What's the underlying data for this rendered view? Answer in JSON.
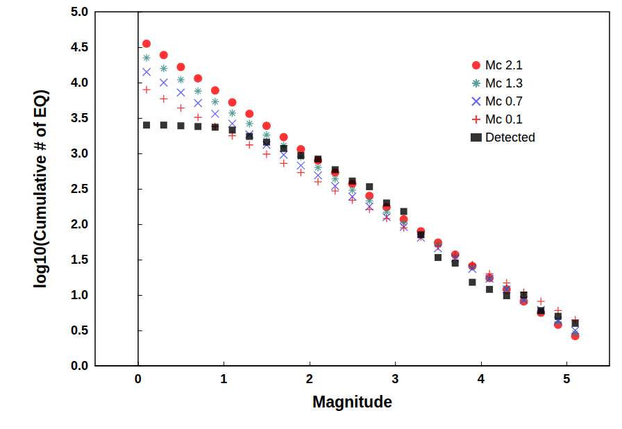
{
  "chart_data": {
    "type": "scatter",
    "x_label": "Magnitude",
    "y_label": "log10(Cumulative # of EQ)",
    "xlim": [
      -0.5,
      5.5
    ],
    "xticks": [
      0,
      1,
      2,
      3,
      4,
      5
    ],
    "ylim": [
      0,
      5
    ],
    "yticks": [
      {
        "value": 0,
        "label": "0.0"
      },
      0.5,
      {
        "value": 1,
        "label": "1.0"
      },
      1.5,
      {
        "value": 2,
        "label": "2.0"
      },
      2.5,
      {
        "value": 3,
        "label": "3.0"
      },
      3.5,
      {
        "value": 4,
        "label": "4.0"
      },
      4.5,
      {
        "value": 5,
        "label": "5.0"
      }
    ],
    "grid": false,
    "legend": "upper right",
    "x": [
      0.1,
      0.3,
      0.5,
      0.7,
      0.9,
      1.1,
      1.3,
      1.5,
      1.7,
      1.9,
      2.1,
      2.3,
      2.5,
      2.7,
      2.9,
      3.1,
      3.3,
      3.5,
      3.7,
      3.9,
      4.1,
      4.3,
      4.5,
      4.7,
      4.9,
      5.1
    ],
    "series": [
      {
        "name": "Mc 2.1",
        "color": "#ff0000",
        "marker": "circle",
        "values": [
          4.55,
          4.39,
          4.22,
          4.06,
          3.89,
          3.72,
          3.56,
          3.39,
          3.23,
          3.06,
          2.9,
          2.73,
          2.57,
          2.4,
          2.24,
          2.07,
          1.9,
          1.74,
          1.57,
          1.41,
          1.24,
          1.08,
          0.91,
          0.75,
          0.58,
          0.42
        ]
      },
      {
        "name": "Mc 1.3",
        "color": "#2a8a80",
        "marker": "asterisk",
        "values": [
          4.35,
          4.2,
          4.04,
          3.88,
          3.73,
          3.57,
          3.42,
          3.26,
          3.11,
          2.95,
          2.8,
          2.64,
          2.48,
          2.33,
          2.17,
          2.02,
          1.86,
          1.71,
          1.55,
          1.4,
          1.24,
          1.09,
          0.93,
          0.77,
          0.62,
          0.46
        ]
      },
      {
        "name": "Mc 0.7",
        "color": "#3a3aff",
        "marker": "x",
        "values": [
          4.15,
          4.0,
          3.86,
          3.71,
          3.56,
          3.42,
          3.27,
          3.12,
          2.98,
          2.83,
          2.69,
          2.54,
          2.39,
          2.25,
          2.1,
          1.96,
          1.81,
          1.66,
          1.52,
          1.37,
          1.23,
          1.08,
          0.93,
          0.79,
          0.64,
          0.5
        ]
      },
      {
        "name": "Mc 0.1",
        "color": "#ff0000",
        "marker": "plus",
        "values": [
          3.9,
          3.77,
          3.64,
          3.51,
          3.38,
          3.25,
          3.12,
          2.99,
          2.86,
          2.73,
          2.6,
          2.47,
          2.34,
          2.21,
          2.08,
          1.95,
          1.82,
          1.69,
          1.56,
          1.43,
          1.3,
          1.17,
          1.04,
          0.91,
          0.78,
          0.65
        ]
      },
      {
        "name": "Detected",
        "color": "#000000",
        "marker": "square",
        "values": [
          3.4,
          3.4,
          3.39,
          3.38,
          3.37,
          3.33,
          3.24,
          3.16,
          3.07,
          2.97,
          2.92,
          2.77,
          2.61,
          2.53,
          2.3,
          2.18,
          1.85,
          1.53,
          1.45,
          1.18,
          1.08,
          0.99,
          1.0,
          0.78,
          0.7,
          0.6
        ]
      }
    ]
  }
}
